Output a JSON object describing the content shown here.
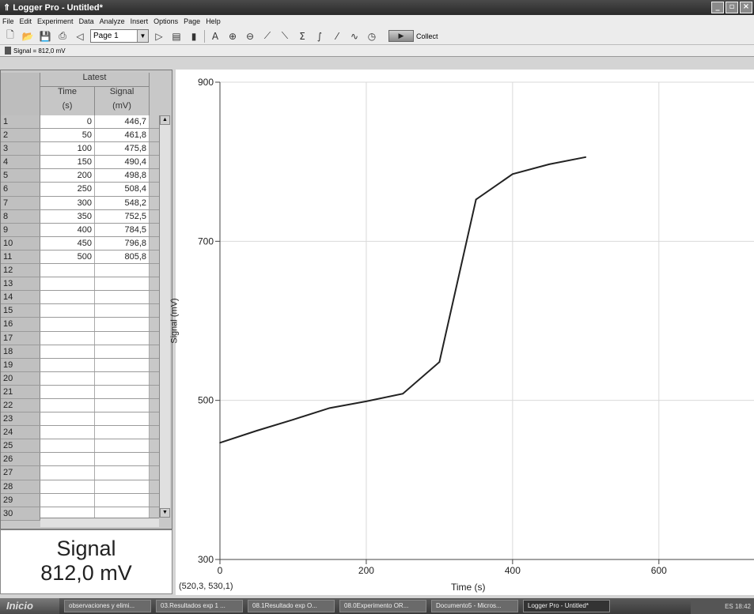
{
  "window": {
    "title": "Logger Pro - Untitled*"
  },
  "menu": [
    "File",
    "Edit",
    "Experiment",
    "Data",
    "Analyze",
    "Insert",
    "Options",
    "Page",
    "Help"
  ],
  "toolbar": {
    "page_select": "Page 1",
    "collect_label": "Collect"
  },
  "meter_bar": {
    "text": "Signal = 812,0 mV"
  },
  "table": {
    "group_header": "Latest",
    "col_time_name": "Time",
    "col_time_unit": "(s)",
    "col_signal_name": "Signal",
    "col_signal_unit": "(mV)",
    "rows": [
      {
        "n": "1",
        "t": "0",
        "s": "446,7"
      },
      {
        "n": "2",
        "t": "50",
        "s": "461,8"
      },
      {
        "n": "3",
        "t": "100",
        "s": "475,8"
      },
      {
        "n": "4",
        "t": "150",
        "s": "490,4"
      },
      {
        "n": "5",
        "t": "200",
        "s": "498,8"
      },
      {
        "n": "6",
        "t": "250",
        "s": "508,4"
      },
      {
        "n": "7",
        "t": "300",
        "s": "548,2"
      },
      {
        "n": "8",
        "t": "350",
        "s": "752,5"
      },
      {
        "n": "9",
        "t": "400",
        "s": "784,5"
      },
      {
        "n": "10",
        "t": "450",
        "s": "796,8"
      },
      {
        "n": "11",
        "t": "500",
        "s": "805,8"
      },
      {
        "n": "12",
        "t": "",
        "s": ""
      },
      {
        "n": "13",
        "t": "",
        "s": ""
      },
      {
        "n": "14",
        "t": "",
        "s": ""
      },
      {
        "n": "15",
        "t": "",
        "s": ""
      },
      {
        "n": "16",
        "t": "",
        "s": ""
      },
      {
        "n": "17",
        "t": "",
        "s": ""
      },
      {
        "n": "18",
        "t": "",
        "s": ""
      },
      {
        "n": "19",
        "t": "",
        "s": ""
      },
      {
        "n": "20",
        "t": "",
        "s": ""
      },
      {
        "n": "21",
        "t": "",
        "s": ""
      },
      {
        "n": "22",
        "t": "",
        "s": ""
      },
      {
        "n": "23",
        "t": "",
        "s": ""
      },
      {
        "n": "24",
        "t": "",
        "s": ""
      },
      {
        "n": "25",
        "t": "",
        "s": ""
      },
      {
        "n": "26",
        "t": "",
        "s": ""
      },
      {
        "n": "27",
        "t": "",
        "s": ""
      },
      {
        "n": "28",
        "t": "",
        "s": ""
      },
      {
        "n": "29",
        "t": "",
        "s": ""
      },
      {
        "n": "30",
        "t": "",
        "s": ""
      }
    ]
  },
  "meter": {
    "label": "Signal",
    "value": "812,0 mV"
  },
  "graph": {
    "coord_readout": "(520,3, 530,1)",
    "xlabel": "Time (s)",
    "ylabel": "Signal (mV)"
  },
  "chart_data": {
    "type": "line",
    "x": [
      0,
      50,
      100,
      150,
      200,
      250,
      300,
      350,
      400,
      450,
      500
    ],
    "series": [
      {
        "values": [
          446.7,
          461.8,
          475.8,
          490.4,
          498.8,
          508.4,
          548.2,
          752.5,
          784.5,
          796.8,
          805.8
        ]
      }
    ],
    "xlim": [
      0,
      730
    ],
    "ylim": [
      300,
      900
    ],
    "xticks": [
      "0",
      "200",
      "400",
      "600"
    ],
    "yticks": [
      "300",
      "500",
      "700",
      "900"
    ],
    "xlabel": "Time (s)",
    "ylabel": "Signal (mV)",
    "grid": true
  },
  "taskbar": {
    "start": "Inicio",
    "tasks": [
      "observaciones y elimi...",
      "03.Resultados exp 1 ...",
      "08.1Resultado exp O...",
      "08.0Experimento OR...",
      "Documento5 - Micros...",
      "Logger Pro - Untitled*"
    ],
    "tray": "ES 18:42"
  },
  "colors": {
    "line": "#222222",
    "grid": "#d9d9d9",
    "titlebar": "#3a3a3a"
  }
}
